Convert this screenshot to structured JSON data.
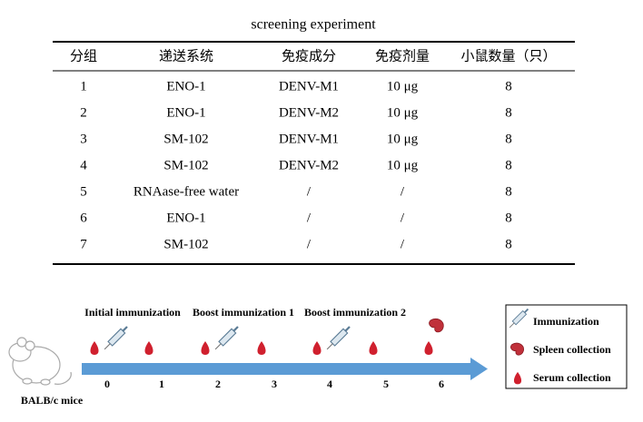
{
  "title": "screening experiment",
  "table": {
    "header": [
      "分组",
      "递送系统",
      "免疫成分",
      "免疫剂量",
      "小鼠数量（只）"
    ],
    "rows": [
      [
        "1",
        "ENO-1",
        "DENV-M1",
        "10 μg",
        "8"
      ],
      [
        "2",
        "ENO-1",
        "DENV-M2",
        "10 μg",
        "8"
      ],
      [
        "3",
        "SM-102",
        "DENV-M1",
        "10 μg",
        "8"
      ],
      [
        "4",
        "SM-102",
        "DENV-M2",
        "10 μg",
        "8"
      ],
      [
        "5",
        "RNAase-free water",
        "/",
        "/",
        "8"
      ],
      [
        "6",
        "ENO-1",
        "/",
        "/",
        "8"
      ],
      [
        "7",
        "SM-102",
        "/",
        "/",
        "8"
      ]
    ]
  },
  "timeline": {
    "subject": "BALB/c mice",
    "phases": [
      "Initial immunization",
      "Boost immunization 1",
      "Boost immunization 2"
    ],
    "days": [
      "0",
      "1",
      "2",
      "3",
      "4",
      "5",
      "6"
    ]
  },
  "legend": [
    "Immunization",
    "Spleen collection",
    "Serum collection"
  ]
}
